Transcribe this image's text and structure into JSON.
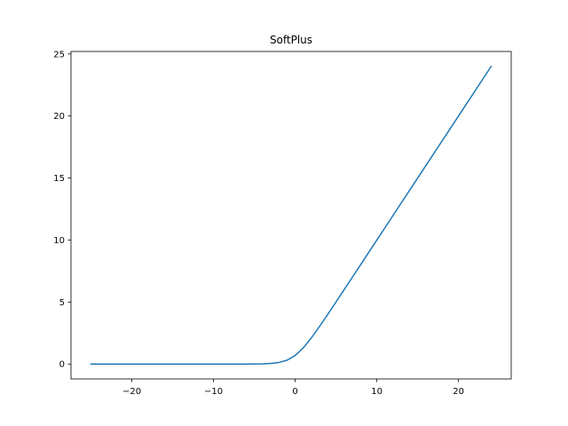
{
  "chart_data": {
    "type": "line",
    "title": "SoftPlus",
    "xlabel": "",
    "ylabel": "",
    "xlim": [
      -27.45,
      26.45
    ],
    "ylim": [
      -1.2,
      25.2
    ],
    "xticks": [
      -20,
      -10,
      0,
      10,
      20
    ],
    "xtick_labels": [
      "−20",
      "−10",
      "0",
      "10",
      "20"
    ],
    "yticks": [
      0,
      5,
      10,
      15,
      20,
      25
    ],
    "ytick_labels": [
      "0",
      "5",
      "10",
      "15",
      "20",
      "25"
    ],
    "grid": false,
    "series": [
      {
        "color": "#1f77b4",
        "x": [
          -25,
          -24,
          -23,
          -22,
          -21,
          -20,
          -19,
          -18,
          -17,
          -16,
          -15,
          -14,
          -13,
          -12,
          -11,
          -10,
          -9,
          -8,
          -7,
          -6,
          -5,
          -4,
          -3,
          -2,
          -1,
          0,
          1,
          2,
          3,
          4,
          5,
          6,
          7,
          8,
          9,
          10,
          11,
          12,
          13,
          14,
          15,
          16,
          17,
          18,
          19,
          20,
          21,
          22,
          23,
          24
        ],
        "y": [
          0,
          0,
          0,
          0,
          0,
          0,
          0,
          0,
          0,
          0,
          0,
          0,
          0,
          0,
          0,
          0.0001,
          0.0001,
          0.0003,
          0.0009,
          0.0025,
          0.0067,
          0.0181,
          0.0486,
          0.1269,
          0.3133,
          0.6931,
          1.3133,
          2.1269,
          3.0486,
          4.0181,
          5.0067,
          6.0025,
          7.0009,
          8.0003,
          9.0001,
          10,
          11,
          12,
          13,
          14,
          15,
          16,
          17,
          18,
          19,
          20,
          21,
          22,
          23,
          24
        ]
      }
    ]
  }
}
